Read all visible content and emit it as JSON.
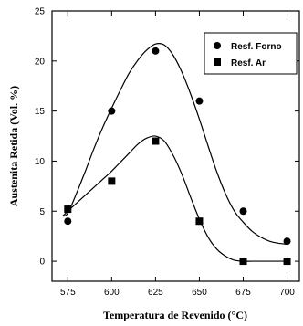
{
  "chart_data": {
    "type": "scatter",
    "title": "",
    "xlabel": "Temperatura de Revenido (°C)",
    "ylabel": "Austenita Retida (Vol. %)",
    "xlim": [
      566,
      707
    ],
    "ylim": [
      -2,
      25
    ],
    "x_ticks": [
      575,
      600,
      625,
      650,
      675,
      700
    ],
    "y_ticks": [
      0,
      5,
      10,
      15,
      20,
      25
    ],
    "grid": false,
    "legend_position": "top-right",
    "series": [
      {
        "name": "Resf. Forno",
        "marker": "circle",
        "color": "#000000",
        "x": [
          575,
          600,
          625,
          650,
          675,
          700
        ],
        "y": [
          4,
          15,
          21,
          16,
          5,
          2
        ],
        "curve_x": [
          572,
          575,
          580,
          585,
          590,
          595,
          600,
          605,
          610,
          615,
          620,
          625,
          630,
          635,
          640,
          645,
          650,
          655,
          660,
          665,
          670,
          675,
          680,
          685,
          690,
          695,
          700
        ],
        "curve_y": [
          4.5,
          4.8,
          6.8,
          9.0,
          11.3,
          13.4,
          15.3,
          17.1,
          18.8,
          20.1,
          21.1,
          21.7,
          21.6,
          20.6,
          18.9,
          16.7,
          14.2,
          11.5,
          8.9,
          6.7,
          5.0,
          3.9,
          3.0,
          2.4,
          2.0,
          1.8,
          1.7
        ]
      },
      {
        "name": "Resf. Ar",
        "marker": "square",
        "color": "#000000",
        "x": [
          575,
          600,
          625,
          650,
          675,
          700
        ],
        "y": [
          5.2,
          8,
          12,
          4,
          0,
          0
        ],
        "curve_x": [
          572,
          575,
          580,
          585,
          590,
          595,
          600,
          605,
          610,
          615,
          620,
          625,
          630,
          635,
          640,
          645,
          650,
          655,
          660,
          665,
          670,
          675,
          680,
          685,
          690,
          695,
          700
        ],
        "curve_y": [
          4.5,
          5.0,
          5.8,
          6.6,
          7.4,
          8.2,
          9.0,
          9.9,
          10.8,
          11.7,
          12.3,
          12.5,
          12.0,
          10.6,
          8.7,
          6.4,
          4.2,
          2.4,
          1.2,
          0.5,
          0.1,
          0.0,
          0.0,
          0.0,
          0.0,
          0.0,
          0.0
        ]
      }
    ]
  }
}
